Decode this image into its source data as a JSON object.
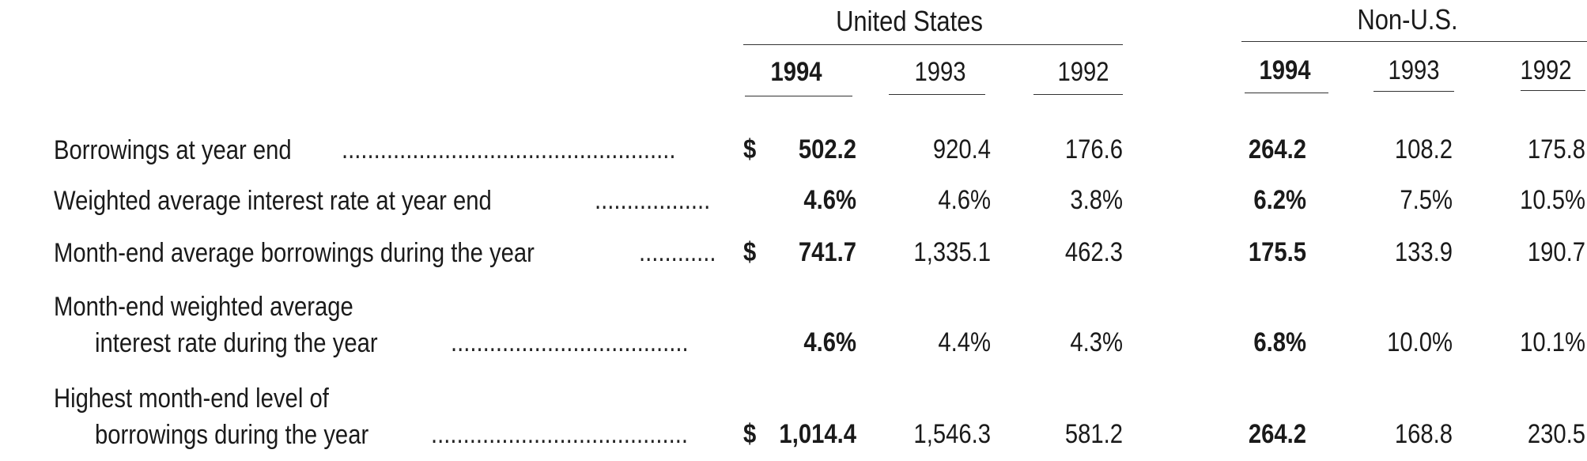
{
  "groups": {
    "us": "United States",
    "nonus": "Non-U.S."
  },
  "years": {
    "us": [
      "1994",
      "1993",
      "1992"
    ],
    "nonus": [
      "1994",
      "1993",
      "1992"
    ]
  },
  "rows": [
    {
      "label_line1": "Borrowings at year end",
      "label_line2": "",
      "dollar": "$",
      "us": [
        "502.2",
        "920.4",
        "176.6"
      ],
      "nonus": [
        "264.2",
        "108.2",
        "175.8"
      ]
    },
    {
      "label_line1": "Weighted average interest rate at year end",
      "label_line2": "",
      "dollar": "",
      "us": [
        "4.6%",
        "4.6%",
        "3.8%"
      ],
      "nonus": [
        "6.2%",
        "7.5%",
        "10.5%"
      ]
    },
    {
      "label_line1": "Month-end average borrowings during the year",
      "label_line2": "",
      "dollar": "$",
      "us": [
        "741.7",
        "1,335.1",
        "462.3"
      ],
      "nonus": [
        "175.5",
        "133.9",
        "190.7"
      ]
    },
    {
      "label_line1": "Month-end weighted average",
      "label_line2": "interest rate during the year",
      "dollar": "",
      "us": [
        "4.6%",
        "4.4%",
        "4.3%"
      ],
      "nonus": [
        "6.8%",
        "10.0%",
        "10.1%"
      ]
    },
    {
      "label_line1": "Highest month-end level of",
      "label_line2": "borrowings during the year",
      "dollar": "$",
      "us": [
        "1,014.4",
        "1,546.3",
        "581.2"
      ],
      "nonus": [
        "264.2",
        "168.8",
        "230.5"
      ]
    }
  ]
}
